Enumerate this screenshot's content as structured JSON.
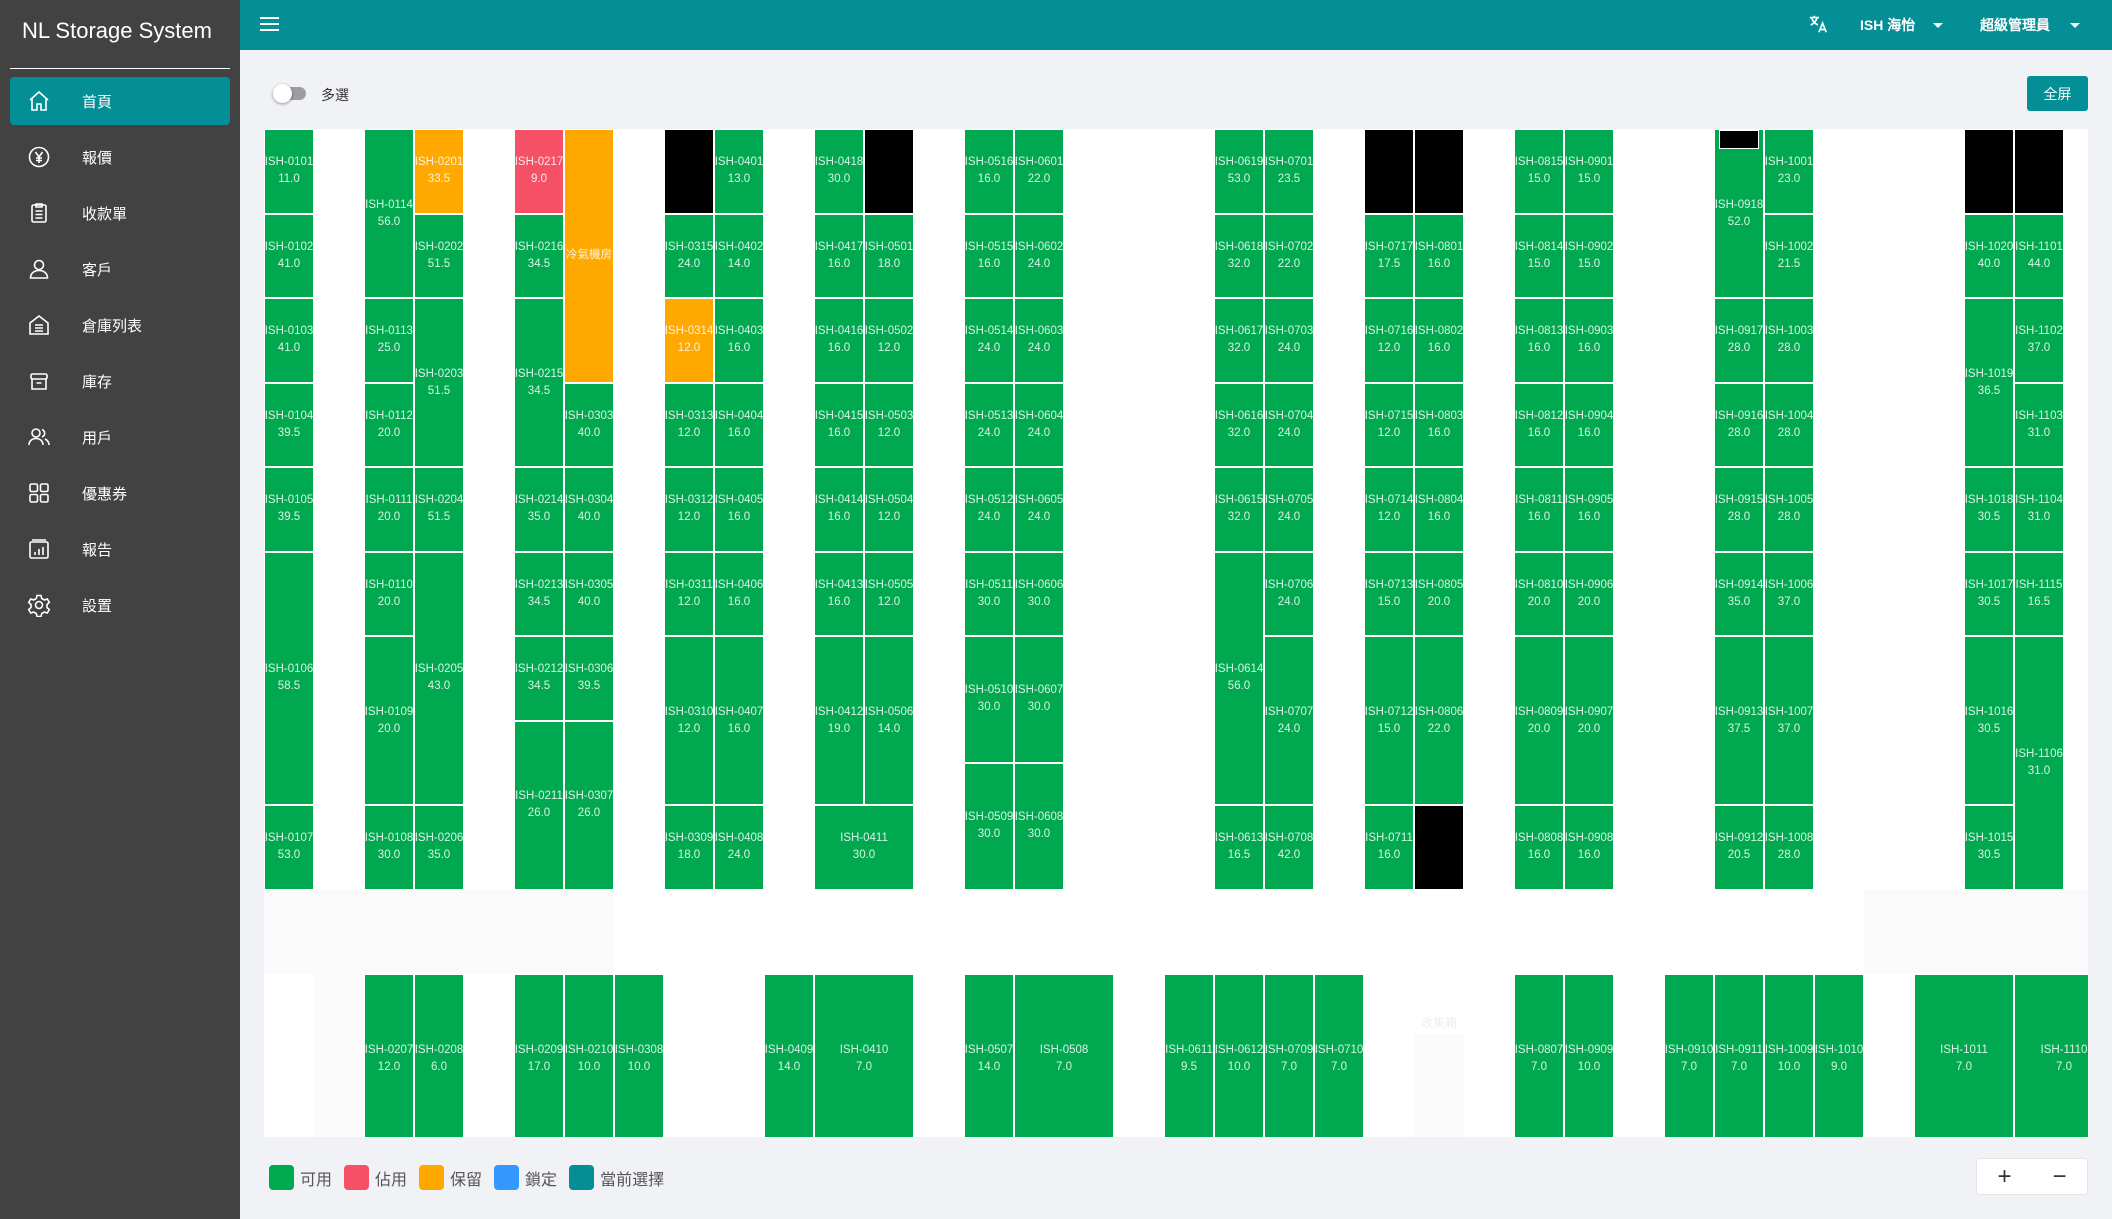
{
  "app_title": "NL Storage System",
  "sidebar": {
    "items": [
      {
        "label": "首頁",
        "icon": "home-icon",
        "active": true
      },
      {
        "label": "報價",
        "icon": "yen-circle-icon"
      },
      {
        "label": "收款單",
        "icon": "clipboard-icon"
      },
      {
        "label": "客戶",
        "icon": "user-icon"
      },
      {
        "label": "倉庫列表",
        "icon": "warehouse-icon"
      },
      {
        "label": "庫存",
        "icon": "archive-box-icon"
      },
      {
        "label": "用戶",
        "icon": "users-icon"
      },
      {
        "label": "優惠券",
        "icon": "grid-icon"
      },
      {
        "label": "報告",
        "icon": "report-chart-icon"
      },
      {
        "label": "設置",
        "icon": "gear-icon"
      }
    ]
  },
  "header": {
    "language_icon": "translate-icon",
    "location": "ISH 海怡",
    "role": "超級管理員"
  },
  "toolbar": {
    "multi_select_label": "多選",
    "multi_select_on": false,
    "fullscreen_label": "全屏"
  },
  "floorplan": {
    "bin_label": "收集箱",
    "units": [
      {
        "id": "ISH-0101",
        "size": "11.0",
        "status": "available"
      },
      {
        "id": "ISH-0102",
        "size": "41.0",
        "status": "available"
      },
      {
        "id": "ISH-0103",
        "size": "41.0",
        "status": "available"
      },
      {
        "id": "ISH-0104",
        "size": "39.5",
        "status": "available"
      },
      {
        "id": "ISH-0105",
        "size": "39.5",
        "status": "available"
      },
      {
        "id": "ISH-0106",
        "size": "58.5",
        "status": "available"
      },
      {
        "id": "ISH-0107",
        "size": "53.0",
        "status": "available"
      },
      {
        "id": "ISH-0114",
        "size": "56.0",
        "status": "available"
      },
      {
        "id": "ISH-0113",
        "size": "25.0",
        "status": "available"
      },
      {
        "id": "ISH-0112",
        "size": "20.0",
        "status": "available"
      },
      {
        "id": "ISH-0111",
        "size": "20.0",
        "status": "available"
      },
      {
        "id": "ISH-0110",
        "size": "20.0",
        "status": "available"
      },
      {
        "id": "ISH-0109",
        "size": "20.0",
        "status": "available"
      },
      {
        "id": "ISH-0108",
        "size": "30.0",
        "status": "available"
      },
      {
        "id": "ISH-0207",
        "size": "12.0",
        "status": "available"
      },
      {
        "id": "ISH-0201",
        "size": "33.5",
        "status": "reserved"
      },
      {
        "id": "ISH-0202",
        "size": "51.5",
        "status": "available"
      },
      {
        "id": "ISH-0203",
        "size": "51.5",
        "status": "available"
      },
      {
        "id": "ISH-0204",
        "size": "51.5",
        "status": "available"
      },
      {
        "id": "ISH-0205",
        "size": "43.0",
        "status": "available"
      },
      {
        "id": "ISH-0206",
        "size": "35.0",
        "status": "available"
      },
      {
        "id": "ISH-0208",
        "size": "6.0",
        "status": "available"
      },
      {
        "id": "ISH-0217",
        "size": "9.0",
        "status": "occupied"
      },
      {
        "id": "ISH-0216",
        "size": "34.5",
        "status": "available"
      },
      {
        "id": "ISH-0215",
        "size": "34.5",
        "status": "available"
      },
      {
        "id": "ISH-0214",
        "size": "35.0",
        "status": "available"
      },
      {
        "id": "ISH-0213",
        "size": "34.5",
        "status": "available"
      },
      {
        "id": "ISH-0212",
        "size": "34.5",
        "status": "available"
      },
      {
        "id": "ISH-0211",
        "size": "26.0",
        "status": "available"
      },
      {
        "id": "ISH-0209",
        "size": "17.0",
        "status": "available"
      },
      {
        "id": "冷氣機房",
        "size": "",
        "status": "reserved"
      },
      {
        "id": "ISH-0303",
        "size": "40.0",
        "status": "available"
      },
      {
        "id": "ISH-0304",
        "size": "40.0",
        "status": "available"
      },
      {
        "id": "ISH-0305",
        "size": "40.0",
        "status": "available"
      },
      {
        "id": "ISH-0306",
        "size": "39.5",
        "status": "available"
      },
      {
        "id": "ISH-0307",
        "size": "26.0",
        "status": "available"
      },
      {
        "id": "ISH-0210",
        "size": "10.0",
        "status": "available"
      },
      {
        "id": "ISH-0308",
        "size": "10.0",
        "status": "available"
      },
      {
        "id": "",
        "size": "",
        "status": "blocked"
      },
      {
        "id": "ISH-0315",
        "size": "24.0",
        "status": "available"
      },
      {
        "id": "ISH-0314",
        "size": "12.0",
        "status": "reserved"
      },
      {
        "id": "ISH-0313",
        "size": "12.0",
        "status": "available"
      },
      {
        "id": "ISH-0312",
        "size": "12.0",
        "status": "available"
      },
      {
        "id": "ISH-0311",
        "size": "12.0",
        "status": "available"
      },
      {
        "id": "ISH-0310",
        "size": "12.0",
        "status": "available"
      },
      {
        "id": "ISH-0309",
        "size": "18.0",
        "status": "available"
      },
      {
        "id": "ISH-0401",
        "size": "13.0",
        "status": "available"
      },
      {
        "id": "ISH-0402",
        "size": "14.0",
        "status": "available"
      },
      {
        "id": "ISH-0403",
        "size": "16.0",
        "status": "available"
      },
      {
        "id": "ISH-0404",
        "size": "16.0",
        "status": "available"
      },
      {
        "id": "ISH-0405",
        "size": "16.0",
        "status": "available"
      },
      {
        "id": "ISH-0406",
        "size": "16.0",
        "status": "available"
      },
      {
        "id": "ISH-0407",
        "size": "16.0",
        "status": "available"
      },
      {
        "id": "ISH-0408",
        "size": "24.0",
        "status": "available"
      },
      {
        "id": "ISH-0409",
        "size": "14.0",
        "status": "available"
      },
      {
        "id": "ISH-0410",
        "size": "7.0",
        "status": "available"
      },
      {
        "id": "ISH-0418",
        "size": "30.0",
        "status": "available"
      },
      {
        "id": "ISH-0417",
        "size": "16.0",
        "status": "available"
      },
      {
        "id": "ISH-0416",
        "size": "16.0",
        "status": "available"
      },
      {
        "id": "ISH-0415",
        "size": "16.0",
        "status": "available"
      },
      {
        "id": "ISH-0414",
        "size": "16.0",
        "status": "available"
      },
      {
        "id": "ISH-0413",
        "size": "16.0",
        "status": "available"
      },
      {
        "id": "ISH-0412",
        "size": "19.0",
        "status": "available"
      },
      {
        "id": "ISH-0411",
        "size": "30.0",
        "status": "available"
      },
      {
        "id": "",
        "size": "",
        "status": "blocked"
      },
      {
        "id": "ISH-0501",
        "size": "18.0",
        "status": "available"
      },
      {
        "id": "ISH-0502",
        "size": "12.0",
        "status": "available"
      },
      {
        "id": "ISH-0503",
        "size": "12.0",
        "status": "available"
      },
      {
        "id": "ISH-0504",
        "size": "12.0",
        "status": "available"
      },
      {
        "id": "ISH-0505",
        "size": "12.0",
        "status": "available"
      },
      {
        "id": "ISH-0506",
        "size": "14.0",
        "status": "available"
      },
      {
        "id": "ISH-0516",
        "size": "16.0",
        "status": "available"
      },
      {
        "id": "ISH-0515",
        "size": "16.0",
        "status": "available"
      },
      {
        "id": "ISH-0514",
        "size": "24.0",
        "status": "available"
      },
      {
        "id": "ISH-0513",
        "size": "24.0",
        "status": "available"
      },
      {
        "id": "ISH-0512",
        "size": "24.0",
        "status": "available"
      },
      {
        "id": "ISH-0511",
        "size": "30.0",
        "status": "available"
      },
      {
        "id": "ISH-0510",
        "size": "30.0",
        "status": "available"
      },
      {
        "id": "ISH-0509",
        "size": "30.0",
        "status": "available"
      },
      {
        "id": "ISH-0507",
        "size": "14.0",
        "status": "available"
      },
      {
        "id": "ISH-0508",
        "size": "7.0",
        "status": "available"
      },
      {
        "id": "ISH-0601",
        "size": "22.0",
        "status": "available"
      },
      {
        "id": "ISH-0602",
        "size": "24.0",
        "status": "available"
      },
      {
        "id": "ISH-0603",
        "size": "24.0",
        "status": "available"
      },
      {
        "id": "ISH-0604",
        "size": "24.0",
        "status": "available"
      },
      {
        "id": "ISH-0605",
        "size": "24.0",
        "status": "available"
      },
      {
        "id": "ISH-0606",
        "size": "30.0",
        "status": "available"
      },
      {
        "id": "ISH-0607",
        "size": "30.0",
        "status": "available"
      },
      {
        "id": "ISH-0608",
        "size": "30.0",
        "status": "available"
      },
      {
        "id": "ISH-0611",
        "size": "9.5",
        "status": "available"
      },
      {
        "id": "ISH-0612",
        "size": "10.0",
        "status": "available"
      },
      {
        "id": "ISH-0709",
        "size": "7.0",
        "status": "available"
      },
      {
        "id": "ISH-0710",
        "size": "7.0",
        "status": "available"
      },
      {
        "id": "ISH-0619",
        "size": "53.0",
        "status": "available"
      },
      {
        "id": "ISH-0618",
        "size": "32.0",
        "status": "available"
      },
      {
        "id": "ISH-0617",
        "size": "32.0",
        "status": "available"
      },
      {
        "id": "ISH-0616",
        "size": "32.0",
        "status": "available"
      },
      {
        "id": "ISH-0615",
        "size": "32.0",
        "status": "available"
      },
      {
        "id": "ISH-0614",
        "size": "56.0",
        "status": "available"
      },
      {
        "id": "ISH-0613",
        "size": "16.5",
        "status": "available"
      },
      {
        "id": "ISH-0701",
        "size": "23.5",
        "status": "available"
      },
      {
        "id": "ISH-0702",
        "size": "22.0",
        "status": "available"
      },
      {
        "id": "ISH-0703",
        "size": "24.0",
        "status": "available"
      },
      {
        "id": "ISH-0704",
        "size": "24.0",
        "status": "available"
      },
      {
        "id": "ISH-0705",
        "size": "24.0",
        "status": "available"
      },
      {
        "id": "ISH-0706",
        "size": "24.0",
        "status": "available"
      },
      {
        "id": "ISH-0707",
        "size": "24.0",
        "status": "available"
      },
      {
        "id": "ISH-0708",
        "size": "42.0",
        "status": "available"
      },
      {
        "id": "",
        "size": "",
        "status": "blocked"
      },
      {
        "id": "ISH-0717",
        "size": "17.5",
        "status": "available"
      },
      {
        "id": "ISH-0716",
        "size": "12.0",
        "status": "available"
      },
      {
        "id": "ISH-0715",
        "size": "12.0",
        "status": "available"
      },
      {
        "id": "ISH-0714",
        "size": "12.0",
        "status": "available"
      },
      {
        "id": "ISH-0713",
        "size": "15.0",
        "status": "available"
      },
      {
        "id": "ISH-0712",
        "size": "15.0",
        "status": "available"
      },
      {
        "id": "ISH-0711",
        "size": "16.0",
        "status": "available"
      },
      {
        "id": "",
        "size": "",
        "status": "blocked"
      },
      {
        "id": "ISH-0801",
        "size": "16.0",
        "status": "available"
      },
      {
        "id": "ISH-0802",
        "size": "16.0",
        "status": "available"
      },
      {
        "id": "ISH-0803",
        "size": "16.0",
        "status": "available"
      },
      {
        "id": "ISH-0804",
        "size": "16.0",
        "status": "available"
      },
      {
        "id": "ISH-0805",
        "size": "20.0",
        "status": "available"
      },
      {
        "id": "ISH-0806",
        "size": "22.0",
        "status": "available"
      },
      {
        "id": "",
        "size": "",
        "status": "blocked"
      },
      {
        "id": "ISH-0815",
        "size": "15.0",
        "status": "available"
      },
      {
        "id": "ISH-0814",
        "size": "15.0",
        "status": "available"
      },
      {
        "id": "ISH-0813",
        "size": "16.0",
        "status": "available"
      },
      {
        "id": "ISH-0812",
        "size": "16.0",
        "status": "available"
      },
      {
        "id": "ISH-0811",
        "size": "16.0",
        "status": "available"
      },
      {
        "id": "ISH-0810",
        "size": "20.0",
        "status": "available"
      },
      {
        "id": "ISH-0809",
        "size": "20.0",
        "status": "available"
      },
      {
        "id": "ISH-0808",
        "size": "16.0",
        "status": "available"
      },
      {
        "id": "ISH-0807",
        "size": "7.0",
        "status": "available"
      },
      {
        "id": "ISH-0901",
        "size": "15.0",
        "status": "available"
      },
      {
        "id": "ISH-0902",
        "size": "15.0",
        "status": "available"
      },
      {
        "id": "ISH-0903",
        "size": "16.0",
        "status": "available"
      },
      {
        "id": "ISH-0904",
        "size": "16.0",
        "status": "available"
      },
      {
        "id": "ISH-0905",
        "size": "16.0",
        "status": "available"
      },
      {
        "id": "ISH-0906",
        "size": "20.0",
        "status": "available"
      },
      {
        "id": "ISH-0907",
        "size": "20.0",
        "status": "available"
      },
      {
        "id": "ISH-0908",
        "size": "16.0",
        "status": "available"
      },
      {
        "id": "ISH-0909",
        "size": "10.0",
        "status": "available"
      },
      {
        "id": "ISH-0910",
        "size": "7.0",
        "status": "available"
      },
      {
        "id": "ISH-0911",
        "size": "7.0",
        "status": "available"
      },
      {
        "id": "ISH-1009",
        "size": "10.0",
        "status": "available"
      },
      {
        "id": "ISH-1010",
        "size": "9.0",
        "status": "available"
      },
      {
        "id": "ISH-0918",
        "size": "52.0",
        "status": "available"
      },
      {
        "id": "ISH-0917",
        "size": "28.0",
        "status": "available"
      },
      {
        "id": "ISH-0916",
        "size": "28.0",
        "status": "available"
      },
      {
        "id": "ISH-0915",
        "size": "28.0",
        "status": "available"
      },
      {
        "id": "ISH-0914",
        "size": "35.0",
        "status": "available"
      },
      {
        "id": "ISH-0913",
        "size": "37.5",
        "status": "available"
      },
      {
        "id": "ISH-0912",
        "size": "20.5",
        "status": "available"
      },
      {
        "id": "ISH-1001",
        "size": "23.0",
        "status": "available"
      },
      {
        "id": "ISH-1002",
        "size": "21.5",
        "status": "available"
      },
      {
        "id": "ISH-1003",
        "size": "28.0",
        "status": "available"
      },
      {
        "id": "ISH-1004",
        "size": "28.0",
        "status": "available"
      },
      {
        "id": "ISH-1005",
        "size": "28.0",
        "status": "available"
      },
      {
        "id": "ISH-1006",
        "size": "37.0",
        "status": "available"
      },
      {
        "id": "ISH-1007",
        "size": "37.0",
        "status": "available"
      },
      {
        "id": "ISH-1008",
        "size": "28.0",
        "status": "available"
      },
      {
        "id": "",
        "size": "",
        "status": "blocked"
      },
      {
        "id": "ISH-1020",
        "size": "40.0",
        "status": "available"
      },
      {
        "id": "ISH-1019",
        "size": "36.5",
        "status": "available"
      },
      {
        "id": "ISH-1018",
        "size": "30.5",
        "status": "available"
      },
      {
        "id": "ISH-1017",
        "size": "30.5",
        "status": "available"
      },
      {
        "id": "ISH-1016",
        "size": "30.5",
        "status": "available"
      },
      {
        "id": "ISH-1015",
        "size": "30.5",
        "status": "available"
      },
      {
        "id": "ISH-1011",
        "size": "7.0",
        "status": "available"
      },
      {
        "id": "",
        "size": "",
        "status": "blocked"
      },
      {
        "id": "ISH-1101",
        "size": "44.0",
        "status": "available"
      },
      {
        "id": "ISH-1102",
        "size": "37.0",
        "status": "available"
      },
      {
        "id": "ISH-1103",
        "size": "31.0",
        "status": "available"
      },
      {
        "id": "ISH-1104",
        "size": "31.0",
        "status": "available"
      },
      {
        "id": "ISH-1115",
        "size": "16.5",
        "status": "available"
      },
      {
        "id": "ISH-1106",
        "size": "31.0",
        "status": "available"
      },
      {
        "id": "ISH-1110",
        "size": "7.0",
        "status": "available"
      }
    ]
  },
  "legend": [
    {
      "label": "可用",
      "color": "#00a94f"
    },
    {
      "label": "佔用",
      "color": "#f65066"
    },
    {
      "label": "保留",
      "color": "#ffa800"
    },
    {
      "label": "鎖定",
      "color": "#3399ff"
    },
    {
      "label": "當前選擇",
      "color": "#048f96"
    }
  ],
  "zoom": {
    "in_label": "+",
    "out_label": "−"
  },
  "colors": {
    "header": "#048f96",
    "sidebar": "#424242",
    "blocked": "#000000"
  }
}
